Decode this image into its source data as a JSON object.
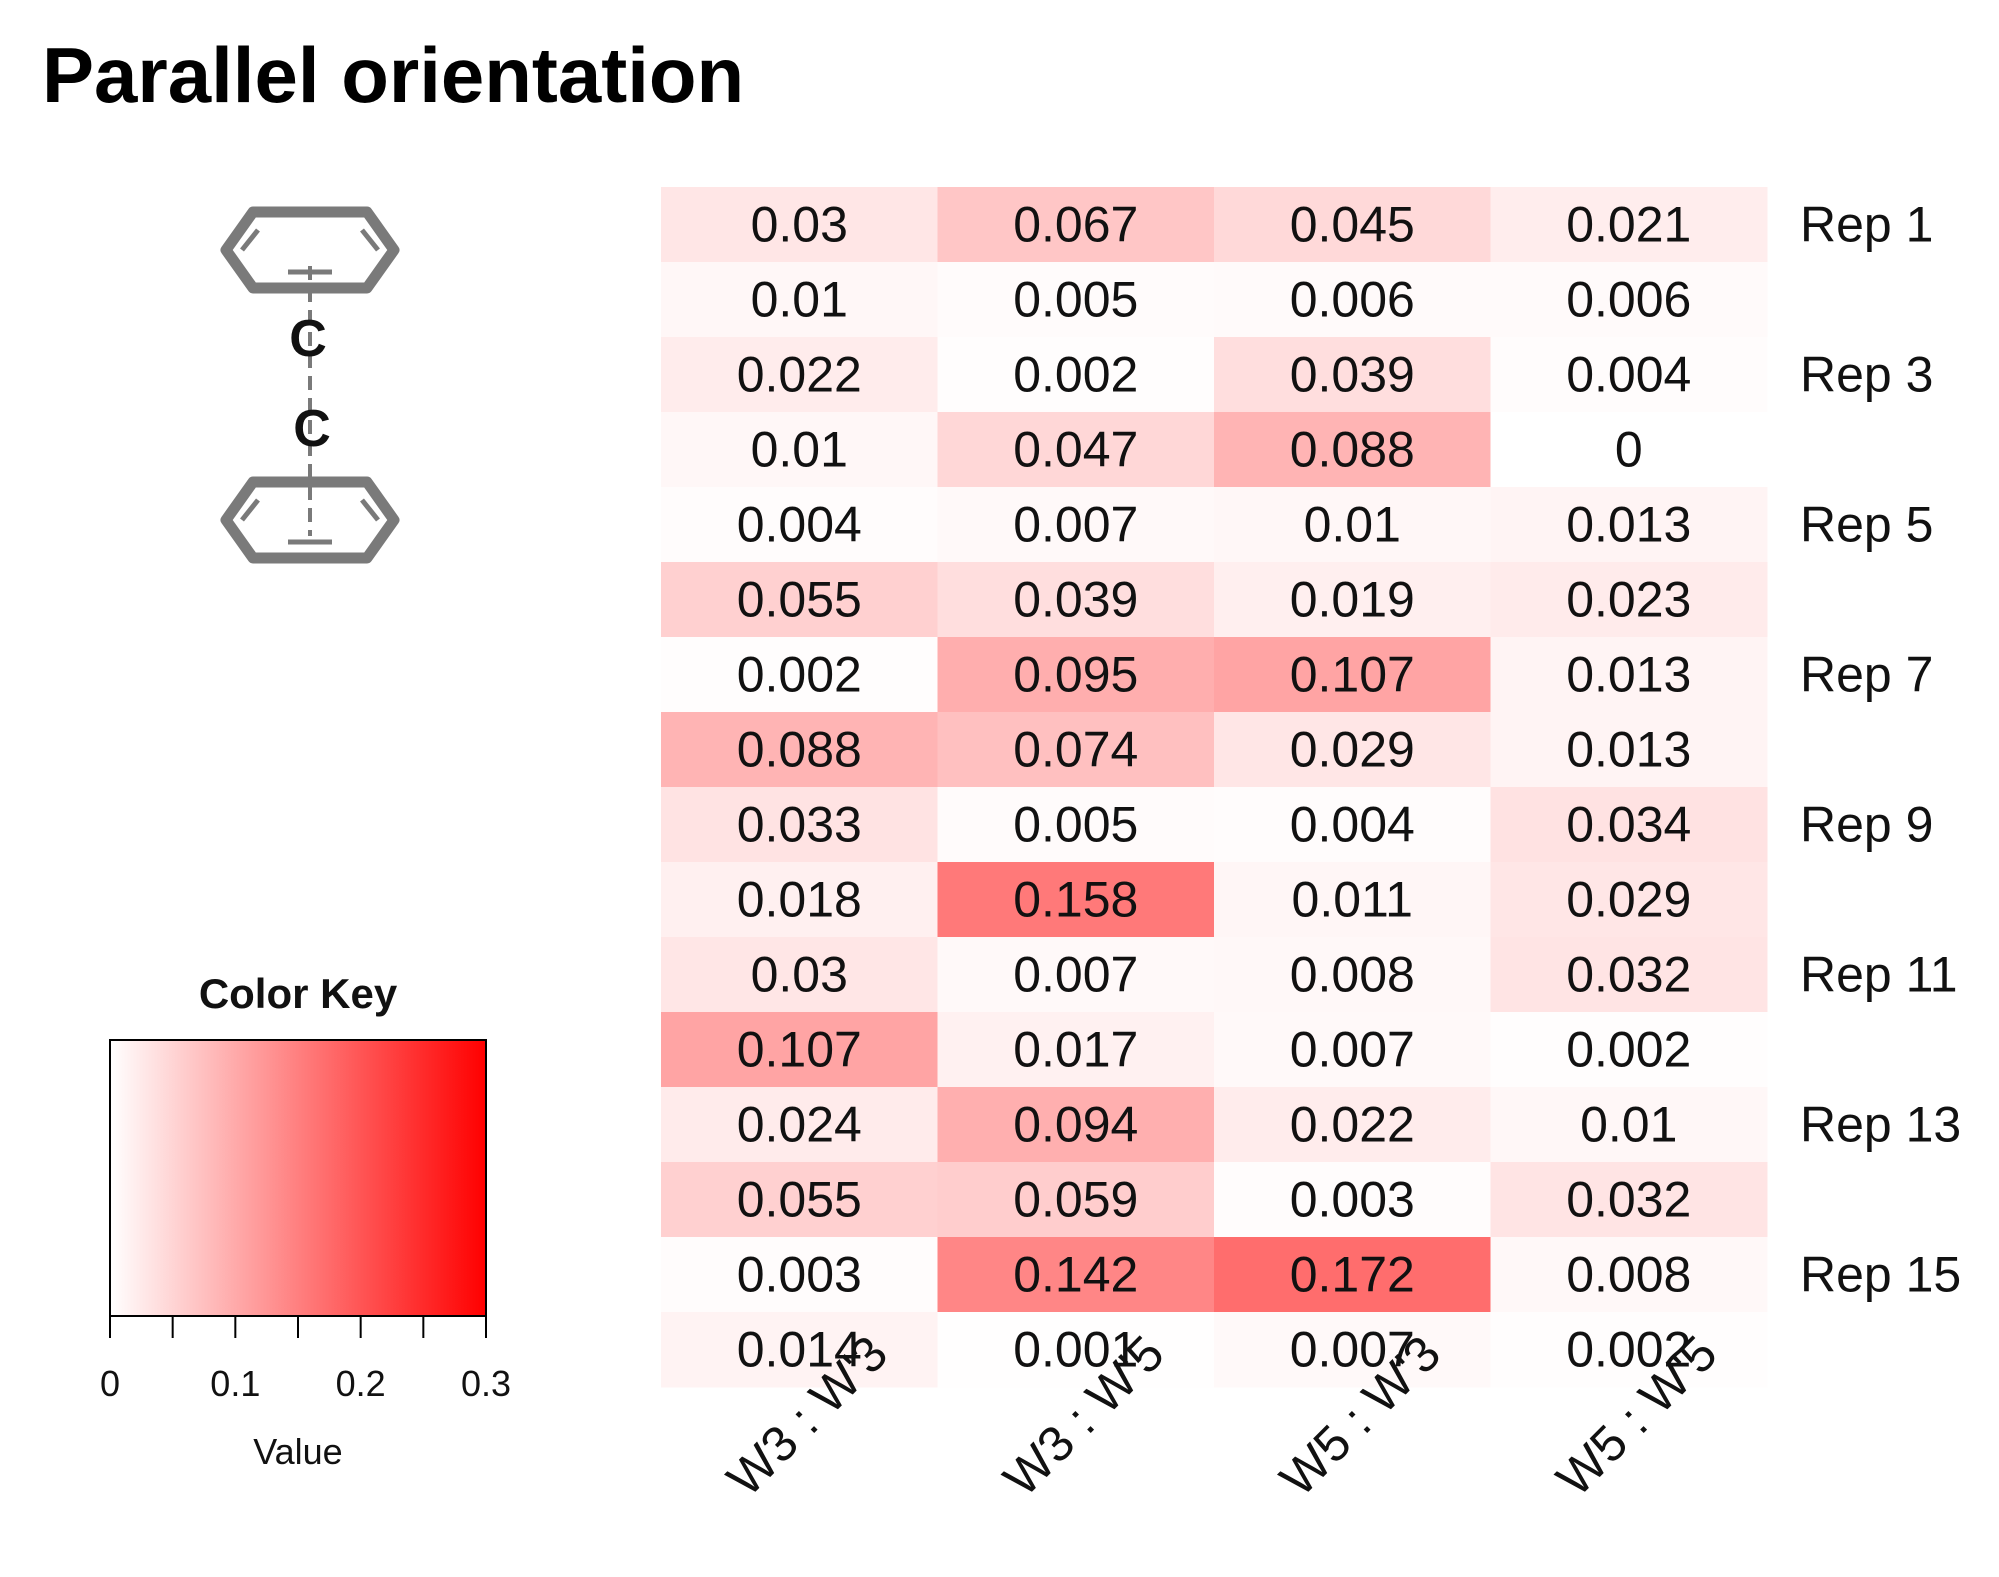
{
  "title": "Parallel orientation",
  "molecule": {
    "atoms": [
      "C",
      "C"
    ],
    "icon": "stacked-benzene-rings-icon"
  },
  "chart_data": {
    "type": "heatmap",
    "columns": [
      "W3 : W'3",
      "W3 : W'5",
      "W5 : W'3",
      "W5 : W'5"
    ],
    "row_labels": [
      "Rep 1",
      "",
      "Rep 3",
      "",
      "Rep 5",
      "",
      "Rep 7",
      "",
      "Rep 9",
      "",
      "Rep 11",
      "",
      "Rep 13",
      "",
      "Rep 15",
      ""
    ],
    "values": [
      [
        "0.03",
        "0.067",
        "0.045",
        "0.021"
      ],
      [
        "0.01",
        "0.005",
        "0.006",
        "0.006"
      ],
      [
        "0.022",
        "0.002",
        "0.039",
        "0.004"
      ],
      [
        "0.01",
        "0.047",
        "0.088",
        "0"
      ],
      [
        "0.004",
        "0.007",
        "0.01",
        "0.013"
      ],
      [
        "0.055",
        "0.039",
        "0.019",
        "0.023"
      ],
      [
        "0.002",
        "0.095",
        "0.107",
        "0.013"
      ],
      [
        "0.088",
        "0.074",
        "0.029",
        "0.013"
      ],
      [
        "0.033",
        "0.005",
        "0.004",
        "0.034"
      ],
      [
        "0.018",
        "0.158",
        "0.011",
        "0.029"
      ],
      [
        "0.03",
        "0.007",
        "0.008",
        "0.032"
      ],
      [
        "0.107",
        "0.017",
        "0.007",
        "0.002"
      ],
      [
        "0.024",
        "0.094",
        "0.022",
        "0.01"
      ],
      [
        "0.055",
        "0.059",
        "0.003",
        "0.032"
      ],
      [
        "0.003",
        "0.142",
        "0.172",
        "0.008"
      ],
      [
        "0.014",
        "0.001",
        "0.007",
        "0.002"
      ]
    ],
    "color_scale": {
      "low": "#ffffff",
      "high": "#ff0000",
      "range": [
        0,
        0.3
      ]
    },
    "color_key": {
      "title": "Color Key",
      "xlabel": "Value",
      "tick_labels": [
        "0",
        "0.1",
        "0.2",
        "0.3"
      ],
      "tick_values": [
        0,
        0.1,
        0.2,
        0.3
      ]
    }
  }
}
